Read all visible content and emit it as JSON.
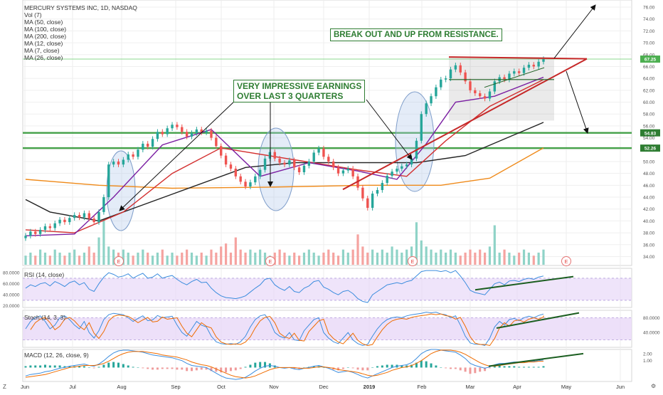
{
  "header": {
    "title": "MERCURY SYSTEMS INC, 1D, NASDAQ",
    "indicators": [
      "Vol (7)",
      "MA (50, close)",
      "MA (100, close)",
      "MA (200, close)",
      "MA (12, close)",
      "MA (7, close)",
      "MA (26, close)"
    ]
  },
  "annotations": {
    "breakout": "BREAK OUT AND UP FROM RESISTANCE.",
    "earnings_line1": "VERY IMPRESSIVE EARNINGS",
    "earnings_line2": "OVER LAST 3 QUARTERS",
    "earnings_marker": "E"
  },
  "panes": {
    "rsi_label": "RSI (14, close)",
    "stoch_label": "Stoch (14, 3, 3)",
    "macd_label": "MACD (12, 26, close, 9)"
  },
  "corner": {
    "left": "Z",
    "right": "⚙"
  },
  "colors": {
    "price_up": "#26a69a",
    "price_down": "#ef5350",
    "accent_green": "#2e7d32",
    "trend_red": "#c62828",
    "ma_orange": "#ef8a1a",
    "ma_black": "#222222",
    "ma_purple": "#7b1fa2",
    "ma_red": "#d32f2f",
    "pane_fill": "#e8d8f8"
  },
  "chart_data": {
    "type": "candlestick",
    "title": "MERCURY SYSTEMS INC, 1D, NASDAQ",
    "x_ticks": [
      "Jun",
      "Jul",
      "Aug",
      "Sep",
      "Oct",
      "Nov",
      "Dec",
      "2019",
      "Feb",
      "Mar",
      "Apr",
      "May",
      "Jun"
    ],
    "price_ticks": [
      34,
      36,
      38,
      40,
      42,
      44,
      46,
      48,
      50,
      52,
      54,
      56,
      58,
      60,
      62,
      64,
      66,
      68,
      70,
      72,
      74,
      76
    ],
    "price_tick_labels": [
      "34.00",
      "36.00",
      "38.00",
      "40.00",
      "42.00",
      "44.00",
      "46.00",
      "48.00",
      "50.00",
      "52.00",
      "54.00",
      "56.00",
      "58.00",
      "60.00",
      "62.00",
      "64.00",
      "66.00",
      "68.00",
      "70.00",
      "72.00",
      "74.00",
      "76.00"
    ],
    "price_ylim": [
      32.5,
      77.2
    ],
    "price_labels": [
      {
        "value": 67.25,
        "text": "67.25"
      },
      {
        "value": 54.83,
        "text": "54.83"
      },
      {
        "value": 52.26,
        "text": "52.26"
      }
    ],
    "horizontal_levels": [
      54.83,
      52.26
    ],
    "closes": [
      37.5,
      38.2,
      37.8,
      38.5,
      39.1,
      38.8,
      39.6,
      40.2,
      39.8,
      40.5,
      41.0,
      40.6,
      41.3,
      40.4,
      39.8,
      41.5,
      44.0,
      49.5,
      50.0,
      49.5,
      50.3,
      51.2,
      50.8,
      52.0,
      53.0,
      52.5,
      53.8,
      55.0,
      54.6,
      55.6,
      56.2,
      55.8,
      55.0,
      54.2,
      54.8,
      55.4,
      54.9,
      55.2,
      54.0,
      52.6,
      51.0,
      49.5,
      48.8,
      47.5,
      46.6,
      45.8,
      46.5,
      47.5,
      48.6,
      50.5,
      51.6,
      50.5,
      49.8,
      49.5,
      50.2,
      49.0,
      48.2,
      49.3,
      50.0,
      51.5,
      52.2,
      50.8,
      50.0,
      49.0,
      48.0,
      48.5,
      48.8,
      47.5,
      45.6,
      43.8,
      42.2,
      44.6,
      45.2,
      46.4,
      47.6,
      48.3,
      48.8,
      49.2,
      49.5,
      50.5,
      53.5,
      58.0,
      59.8,
      61.0,
      62.5,
      63.8,
      64.0,
      65.5,
      66.2,
      65.0,
      63.5,
      62.0,
      61.5,
      61.0,
      60.6,
      61.8,
      63.5,
      64.2,
      63.8,
      64.8,
      65.2,
      64.9,
      65.8,
      66.3,
      66.0,
      66.8,
      67.25
    ],
    "ma_lines": [
      {
        "name": "MA (200, close)",
        "color": "#ef8a1a",
        "points": [
          [
            0,
            47.0
          ],
          [
            15,
            46.0
          ],
          [
            30,
            45.5
          ],
          [
            50,
            45.7
          ],
          [
            70,
            46.0
          ],
          [
            85,
            46.0
          ],
          [
            95,
            47.2
          ],
          [
            106,
            52.3
          ]
        ]
      },
      {
        "name": "MA (100, close)",
        "color": "#222222",
        "points": [
          [
            0,
            43.6
          ],
          [
            5,
            41.5
          ],
          [
            15,
            40.0
          ],
          [
            30,
            44.5
          ],
          [
            45,
            49.0
          ],
          [
            55,
            49.8
          ],
          [
            72,
            49.8
          ],
          [
            80,
            49.8
          ],
          [
            90,
            51.0
          ],
          [
            106,
            56.6
          ]
        ]
      },
      {
        "name": "MA (50, close)",
        "color": "#d32f2f",
        "points": [
          [
            0,
            38.5
          ],
          [
            10,
            38.0
          ],
          [
            20,
            41.5
          ],
          [
            30,
            48.0
          ],
          [
            40,
            52.3
          ],
          [
            55,
            50.3
          ],
          [
            68,
            48.6
          ],
          [
            78,
            47.5
          ],
          [
            86,
            53.5
          ],
          [
            95,
            59.3
          ],
          [
            106,
            63.8
          ]
        ]
      },
      {
        "name": "MA (26, close)",
        "color": "#7b1fa2",
        "points": [
          [
            0,
            37.5
          ],
          [
            10,
            37.8
          ],
          [
            18,
            44.0
          ],
          [
            28,
            52.8
          ],
          [
            38,
            55.4
          ],
          [
            48,
            47.5
          ],
          [
            58,
            49.8
          ],
          [
            68,
            48.4
          ],
          [
            76,
            47.0
          ],
          [
            82,
            53.0
          ],
          [
            88,
            60.0
          ],
          [
            96,
            61.0
          ],
          [
            106,
            64.2
          ]
        ]
      }
    ],
    "volume": [
      3,
      4,
      3,
      5,
      4,
      3,
      5,
      4,
      3,
      4,
      5,
      3,
      4,
      6,
      4,
      9,
      15,
      6,
      5,
      4,
      5,
      4,
      3,
      4,
      5,
      4,
      3,
      4,
      5,
      3,
      4,
      3,
      4,
      5,
      4,
      3,
      4,
      3,
      5,
      4,
      6,
      7,
      4,
      9,
      5,
      4,
      5,
      4,
      5,
      4,
      3,
      4,
      5,
      4,
      3,
      4,
      3,
      4,
      5,
      4,
      3,
      4,
      5,
      4,
      3,
      5,
      4,
      5,
      10,
      6,
      4,
      5,
      4,
      5,
      4,
      6,
      5,
      4,
      5,
      6,
      14,
      8,
      6,
      5,
      4,
      5,
      4,
      5,
      4,
      3,
      4,
      5,
      4,
      5,
      4,
      6,
      13,
      4,
      5,
      4,
      3,
      4,
      5,
      4,
      3,
      4,
      5
    ],
    "rsi": {
      "label": "RSI (14, close)",
      "ticks": [
        "80.0000",
        "60.0000",
        "40.0000",
        "20.0000"
      ],
      "tick_values": [
        80,
        60,
        40,
        20
      ],
      "ylim": [
        17,
        88
      ],
      "values": [
        52,
        58,
        55,
        60,
        62,
        56,
        64,
        60,
        55,
        62,
        65,
        58,
        62,
        50,
        46,
        60,
        72,
        80,
        77,
        72,
        74,
        78,
        70,
        75,
        79,
        70,
        72,
        78,
        70,
        73,
        75,
        68,
        62,
        58,
        64,
        68,
        62,
        63,
        52,
        44,
        38,
        35,
        34,
        33,
        35,
        38,
        45,
        52,
        58,
        68,
        70,
        58,
        52,
        48,
        55,
        46,
        44,
        52,
        56,
        64,
        66,
        54,
        50,
        44,
        40,
        46,
        48,
        42,
        33,
        28,
        26,
        40,
        46,
        52,
        58,
        60,
        62,
        60,
        64,
        66,
        74,
        82,
        84,
        84,
        84,
        82,
        84,
        80,
        84,
        74,
        62,
        48,
        44,
        42,
        40,
        50,
        60,
        63,
        58,
        65,
        66,
        64,
        68,
        70,
        68,
        72,
        74
      ]
    },
    "stoch": {
      "label": "Stoch (14, 3, 3)",
      "ticks": [
        "80.0000",
        "40.0000"
      ],
      "tick_values": [
        80,
        40
      ],
      "ylim": [
        0,
        100
      ],
      "values": [
        50,
        70,
        80,
        85,
        70,
        50,
        60,
        80,
        85,
        75,
        60,
        50,
        70,
        40,
        25,
        45,
        75,
        88,
        92,
        90,
        88,
        80,
        70,
        78,
        85,
        72,
        74,
        86,
        80,
        82,
        84,
        60,
        40,
        30,
        50,
        70,
        60,
        55,
        30,
        15,
        10,
        8,
        10,
        8,
        15,
        30,
        55,
        75,
        85,
        88,
        70,
        40,
        30,
        25,
        40,
        20,
        18,
        45,
        60,
        75,
        80,
        40,
        25,
        15,
        10,
        25,
        40,
        20,
        10,
        5,
        8,
        30,
        50,
        65,
        75,
        80,
        82,
        80,
        85,
        88,
        90,
        92,
        95,
        93,
        95,
        90,
        88,
        80,
        85,
        60,
        30,
        12,
        8,
        8,
        5,
        25,
        55,
        70,
        60,
        75,
        78,
        72,
        80,
        84,
        80,
        86,
        90
      ]
    },
    "macd": {
      "label": "MACD (12, 26, close, 9)",
      "ticks": [
        "2.00",
        "1.00"
      ],
      "tick_values": [
        2,
        1
      ],
      "ylim": [
        -2.0,
        2.6
      ],
      "macd_values": [
        -1.2,
        -1.0,
        -0.9,
        -0.8,
        -0.6,
        -0.5,
        -0.3,
        -0.1,
        0.0,
        0.2,
        0.3,
        0.4,
        0.5,
        0.3,
        0.2,
        0.5,
        1.0,
        1.6,
        2.1,
        2.4,
        2.5,
        2.5,
        2.4,
        2.3,
        2.2,
        2.0,
        1.8,
        1.7,
        1.6,
        1.5,
        1.4,
        1.2,
        1.0,
        0.6,
        0.3,
        0.2,
        0.1,
        0.0,
        -0.4,
        -0.8,
        -1.2,
        -1.5,
        -1.6,
        -1.7,
        -1.6,
        -1.4,
        -1.0,
        -0.5,
        -0.1,
        0.2,
        0.3,
        0.2,
        0.0,
        -0.1,
        0.0,
        -0.2,
        -0.3,
        -0.1,
        0.0,
        0.2,
        0.3,
        0.1,
        -0.1,
        -0.4,
        -0.7,
        -0.6,
        -0.5,
        -0.7,
        -1.0,
        -1.3,
        -1.5,
        -1.2,
        -0.9,
        -0.6,
        -0.3,
        0.0,
        0.2,
        0.3,
        0.4,
        0.7,
        1.3,
        2.0,
        2.4,
        2.6,
        2.6,
        2.5,
        2.4,
        2.3,
        2.2,
        1.8,
        1.3,
        0.6,
        0.3,
        0.1,
        -0.1,
        0.1,
        0.4,
        0.6,
        0.6,
        0.7,
        0.8,
        0.8,
        0.8,
        0.9,
        0.9,
        1.0,
        1.1
      ],
      "signal_values": [
        -1.4,
        -1.3,
        -1.2,
        -1.1,
        -1.0,
        -0.8,
        -0.6,
        -0.4,
        -0.2,
        0.0,
        0.1,
        0.2,
        0.3,
        0.3,
        0.3,
        0.4,
        0.6,
        0.9,
        1.3,
        1.7,
        2.0,
        2.2,
        2.3,
        2.3,
        2.3,
        2.2,
        2.1,
        2.0,
        1.8,
        1.7,
        1.6,
        1.5,
        1.3,
        1.1,
        0.8,
        0.6,
        0.4,
        0.3,
        0.1,
        -0.2,
        -0.5,
        -0.8,
        -1.1,
        -1.3,
        -1.4,
        -1.5,
        -1.4,
        -1.2,
        -0.9,
        -0.6,
        -0.3,
        -0.1,
        0.0,
        0.0,
        0.0,
        0.0,
        -0.1,
        -0.1,
        -0.1,
        0.0,
        0.1,
        0.1,
        0.0,
        -0.1,
        -0.3,
        -0.4,
        -0.5,
        -0.6,
        -0.7,
        -0.9,
        -1.1,
        -1.2,
        -1.1,
        -0.9,
        -0.7,
        -0.4,
        -0.2,
        0.0,
        0.1,
        0.3,
        0.6,
        1.0,
        1.5,
        2.0,
        2.3,
        2.5,
        2.5,
        2.5,
        2.4,
        2.2,
        1.9,
        1.5,
        1.1,
        0.7,
        0.4,
        0.2,
        0.2,
        0.3,
        0.4,
        0.5,
        0.6,
        0.7,
        0.7,
        0.8,
        0.8,
        0.9,
        0.9
      ]
    }
  }
}
